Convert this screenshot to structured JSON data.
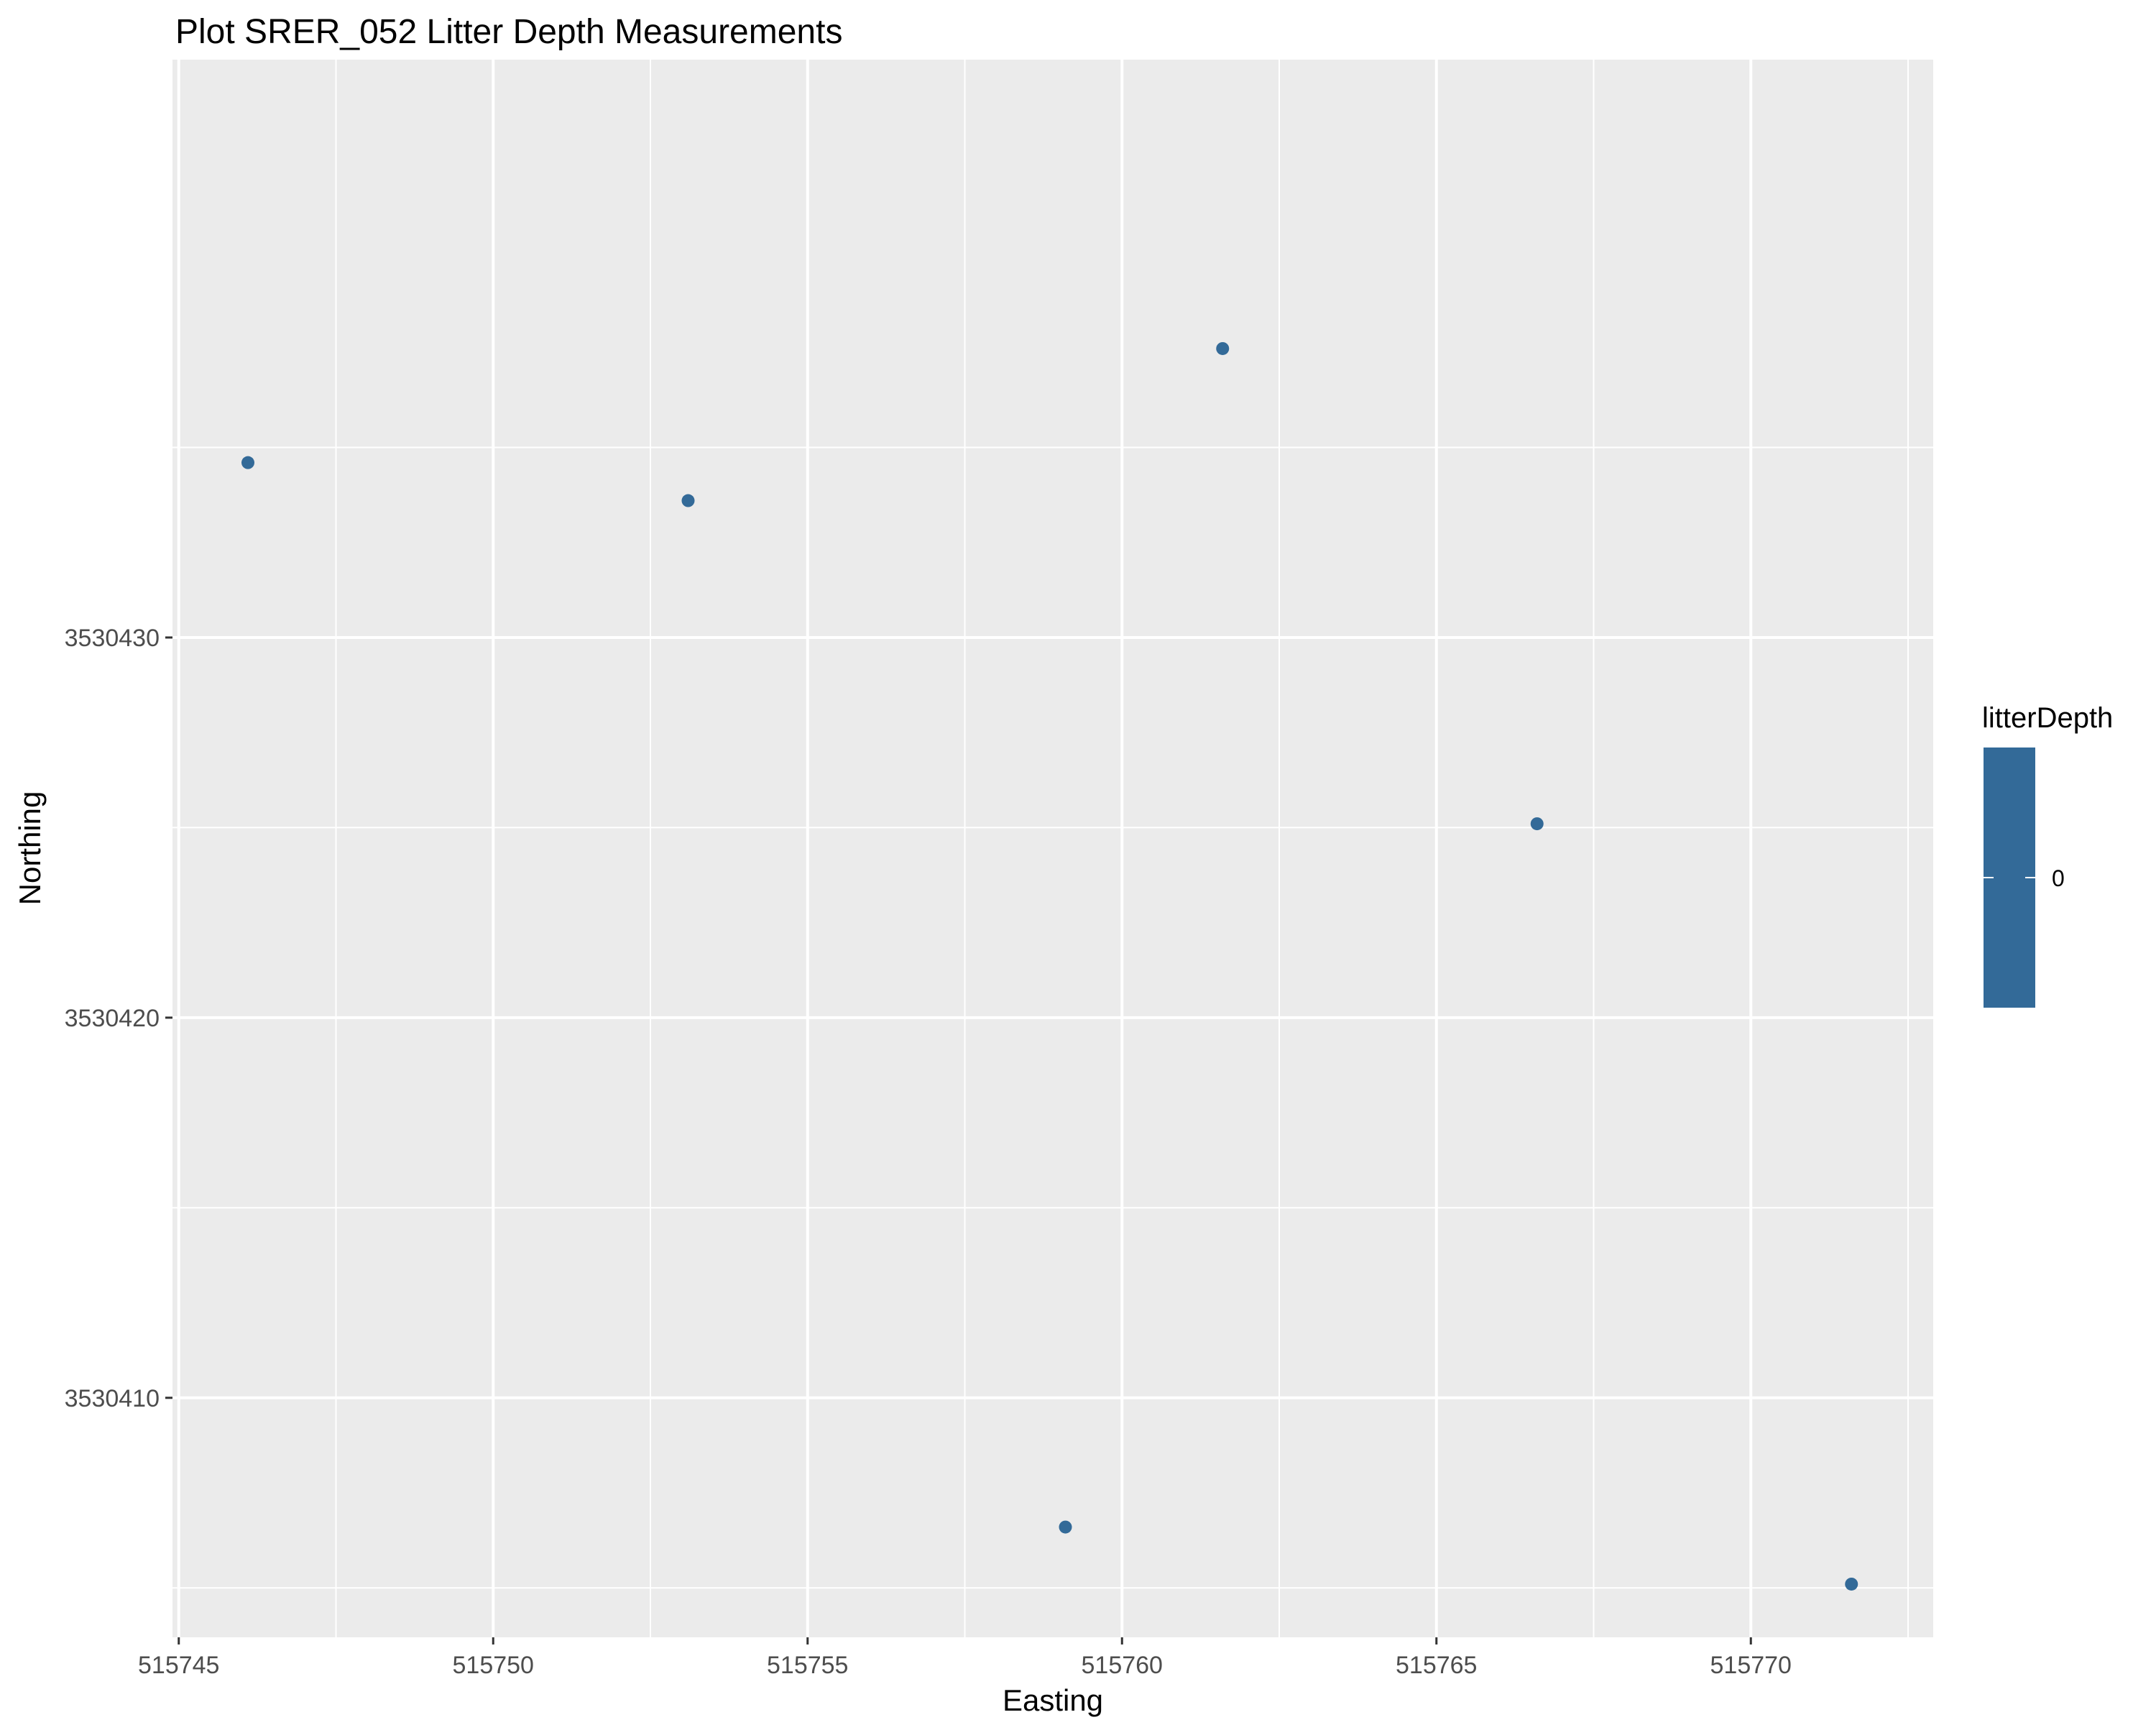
{
  "chart_data": {
    "type": "scatter",
    "title": "Plot SRER_052 Litter Depth Measurements",
    "xlabel": "Easting",
    "ylabel": "Northing",
    "xlim": [
      515744.9,
      515772.9
    ],
    "ylim": [
      3530403.7,
      3530445.2
    ],
    "x_ticks": [
      515745,
      515750,
      515755,
      515760,
      515765,
      515770
    ],
    "y_ticks": [
      3530410,
      3530420,
      3530430
    ],
    "x_tick_labels": [
      "515745",
      "515750",
      "515755",
      "515760",
      "515765",
      "515770"
    ],
    "y_tick_labels": [
      "3530410",
      "3530420",
      "3530430"
    ],
    "grid": true,
    "legend": {
      "title": "litterDepth",
      "position": "right",
      "labels": [
        "0"
      ],
      "color": "#336A98"
    },
    "point_color": "#336A98",
    "panel_color": "#EBEBEB",
    "points": [
      {
        "x": 515746.1,
        "y": 3530434.6,
        "litterDepth": 0
      },
      {
        "x": 515753.1,
        "y": 3530433.6,
        "litterDepth": 0
      },
      {
        "x": 515761.6,
        "y": 3530437.6,
        "litterDepth": 0
      },
      {
        "x": 515766.6,
        "y": 3530425.1,
        "litterDepth": 0
      },
      {
        "x": 515759.1,
        "y": 3530406.6,
        "litterDepth": 0
      },
      {
        "x": 515771.6,
        "y": 3530405.1,
        "litterDepth": 0
      }
    ]
  }
}
